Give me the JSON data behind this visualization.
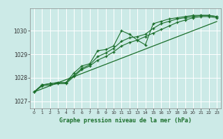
{
  "xlabel": "Graphe pression niveau de la mer (hPa)",
  "background_color": "#cceae7",
  "grid_color": "#ffffff",
  "line_color": "#1a6e2a",
  "ylim": [
    1026.7,
    1030.95
  ],
  "xlim": [
    -0.5,
    23.5
  ],
  "yticks": [
    1027,
    1028,
    1029,
    1030
  ],
  "xticks": [
    0,
    1,
    2,
    3,
    4,
    5,
    6,
    7,
    8,
    9,
    10,
    11,
    12,
    13,
    14,
    15,
    16,
    17,
    18,
    19,
    20,
    21,
    22,
    23
  ],
  "series1": [
    1027.4,
    1027.7,
    1027.75,
    1027.8,
    1027.8,
    1028.2,
    1028.5,
    1028.6,
    1029.15,
    1029.2,
    1029.35,
    1030.0,
    1029.85,
    1029.6,
    1029.4,
    1030.3,
    1030.4,
    1030.5,
    1030.55,
    1030.6,
    1030.65,
    1030.65,
    1030.65,
    1030.6
  ],
  "series2": [
    1027.4,
    1027.7,
    1027.75,
    1027.8,
    1027.8,
    1028.1,
    1028.4,
    1028.55,
    1028.9,
    1029.05,
    1029.25,
    1029.55,
    1029.7,
    1029.75,
    1029.85,
    1030.1,
    1030.3,
    1030.4,
    1030.5,
    1030.55,
    1030.6,
    1030.65,
    1030.65,
    1030.6
  ],
  "series3": [
    1027.4,
    1027.65,
    1027.7,
    1027.75,
    1027.75,
    1028.05,
    1028.35,
    1028.5,
    1028.75,
    1028.9,
    1029.1,
    1029.35,
    1029.5,
    1029.6,
    1029.75,
    1029.9,
    1030.05,
    1030.2,
    1030.35,
    1030.45,
    1030.55,
    1030.6,
    1030.6,
    1030.55
  ],
  "series_linear": [
    1027.4,
    1027.53,
    1027.66,
    1027.79,
    1027.92,
    1028.05,
    1028.18,
    1028.31,
    1028.44,
    1028.57,
    1028.7,
    1028.83,
    1028.96,
    1029.09,
    1029.22,
    1029.35,
    1029.48,
    1029.61,
    1029.74,
    1029.87,
    1030.0,
    1030.13,
    1030.26,
    1030.39
  ]
}
